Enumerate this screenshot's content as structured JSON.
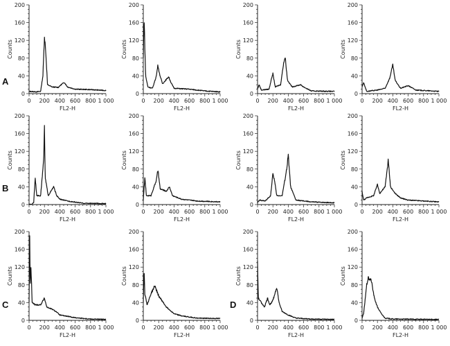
{
  "chart_data": {
    "type": "line",
    "xlabel": "FL2-H",
    "ylabel": "Counts",
    "xlim": [
      0,
      1000
    ],
    "ylim": [
      0,
      200
    ],
    "xticks": [
      "0",
      "200",
      "400",
      "600",
      "800",
      "1 000"
    ],
    "yticks": [
      "0",
      "40",
      "80",
      "120",
      "160",
      "200"
    ],
    "grid": false,
    "panel_labels": [
      "A",
      "B",
      "C",
      "D"
    ],
    "panels": [
      {
        "group": "A",
        "points": [
          [
            0,
            5
          ],
          [
            100,
            4
          ],
          [
            150,
            5
          ],
          [
            180,
            40
          ],
          [
            200,
            130
          ],
          [
            215,
            100
          ],
          [
            240,
            20
          ],
          [
            300,
            15
          ],
          [
            380,
            14
          ],
          [
            430,
            22
          ],
          [
            460,
            25
          ],
          [
            500,
            15
          ],
          [
            600,
            10
          ],
          [
            800,
            9
          ],
          [
            1000,
            7
          ]
        ]
      },
      {
        "group": "A",
        "points": [
          [
            0,
            80
          ],
          [
            10,
            175
          ],
          [
            20,
            105
          ],
          [
            30,
            40
          ],
          [
            60,
            15
          ],
          [
            120,
            12
          ],
          [
            170,
            40
          ],
          [
            190,
            65
          ],
          [
            210,
            45
          ],
          [
            250,
            22
          ],
          [
            300,
            32
          ],
          [
            330,
            38
          ],
          [
            360,
            25
          ],
          [
            400,
            12
          ],
          [
            600,
            10
          ],
          [
            800,
            6
          ],
          [
            1000,
            4
          ]
        ]
      },
      {
        "group": "A",
        "points": [
          [
            0,
            10
          ],
          [
            20,
            20
          ],
          [
            50,
            8
          ],
          [
            150,
            10
          ],
          [
            190,
            40
          ],
          [
            200,
            45
          ],
          [
            230,
            15
          ],
          [
            300,
            20
          ],
          [
            340,
            70
          ],
          [
            360,
            82
          ],
          [
            390,
            30
          ],
          [
            450,
            15
          ],
          [
            560,
            20
          ],
          [
            600,
            15
          ],
          [
            700,
            6
          ],
          [
            1000,
            5
          ]
        ]
      },
      {
        "group": "A",
        "points": [
          [
            0,
            15
          ],
          [
            20,
            25
          ],
          [
            60,
            5
          ],
          [
            200,
            8
          ],
          [
            300,
            12
          ],
          [
            360,
            35
          ],
          [
            400,
            65
          ],
          [
            430,
            30
          ],
          [
            500,
            12
          ],
          [
            600,
            18
          ],
          [
            700,
            8
          ],
          [
            1000,
            5
          ]
        ]
      },
      {
        "group": "B",
        "points": [
          [
            0,
            0
          ],
          [
            40,
            1
          ],
          [
            60,
            5
          ],
          [
            80,
            60
          ],
          [
            100,
            20
          ],
          [
            150,
            20
          ],
          [
            190,
            100
          ],
          [
            200,
            175
          ],
          [
            210,
            60
          ],
          [
            250,
            20
          ],
          [
            320,
            40
          ],
          [
            360,
            20
          ],
          [
            400,
            12
          ],
          [
            500,
            8
          ],
          [
            700,
            3
          ],
          [
            1000,
            2
          ]
        ]
      },
      {
        "group": "B",
        "points": [
          [
            0,
            10
          ],
          [
            20,
            60
          ],
          [
            40,
            20
          ],
          [
            100,
            20
          ],
          [
            170,
            55
          ],
          [
            190,
            78
          ],
          [
            220,
            35
          ],
          [
            300,
            30
          ],
          [
            340,
            40
          ],
          [
            380,
            20
          ],
          [
            500,
            12
          ],
          [
            700,
            8
          ],
          [
            1000,
            6
          ]
        ]
      },
      {
        "group": "B",
        "points": [
          [
            0,
            5
          ],
          [
            30,
            10
          ],
          [
            100,
            8
          ],
          [
            170,
            20
          ],
          [
            200,
            70
          ],
          [
            220,
            55
          ],
          [
            250,
            20
          ],
          [
            320,
            20
          ],
          [
            380,
            80
          ],
          [
            400,
            112
          ],
          [
            430,
            40
          ],
          [
            500,
            10
          ],
          [
            700,
            6
          ],
          [
            1000,
            4
          ]
        ]
      },
      {
        "group": "B",
        "points": [
          [
            0,
            30
          ],
          [
            20,
            10
          ],
          [
            60,
            15
          ],
          [
            150,
            20
          ],
          [
            200,
            45
          ],
          [
            230,
            25
          ],
          [
            300,
            40
          ],
          [
            340,
            100
          ],
          [
            370,
            40
          ],
          [
            430,
            25
          ],
          [
            500,
            15
          ],
          [
            600,
            10
          ],
          [
            800,
            8
          ],
          [
            1000,
            6
          ]
        ]
      },
      {
        "group": "C",
        "points": [
          [
            0,
            40
          ],
          [
            8,
            195
          ],
          [
            15,
            80
          ],
          [
            25,
            120
          ],
          [
            40,
            40
          ],
          [
            80,
            35
          ],
          [
            150,
            35
          ],
          [
            200,
            50
          ],
          [
            230,
            30
          ],
          [
            300,
            25
          ],
          [
            350,
            20
          ],
          [
            400,
            12
          ],
          [
            600,
            6
          ],
          [
            800,
            3
          ],
          [
            1000,
            2
          ]
        ]
      },
      {
        "group": "C",
        "points": [
          [
            0,
            40
          ],
          [
            10,
            120
          ],
          [
            20,
            60
          ],
          [
            50,
            35
          ],
          [
            100,
            60
          ],
          [
            150,
            78
          ],
          [
            200,
            55
          ],
          [
            300,
            30
          ],
          [
            400,
            15
          ],
          [
            500,
            10
          ],
          [
            700,
            5
          ],
          [
            1000,
            4
          ]
        ]
      },
      {
        "group": "D",
        "points": [
          [
            0,
            135
          ],
          [
            10,
            50
          ],
          [
            50,
            40
          ],
          [
            90,
            30
          ],
          [
            130,
            50
          ],
          [
            160,
            35
          ],
          [
            200,
            45
          ],
          [
            250,
            75
          ],
          [
            280,
            40
          ],
          [
            320,
            20
          ],
          [
            400,
            12
          ],
          [
            500,
            5
          ],
          [
            700,
            3
          ],
          [
            1000,
            2
          ]
        ]
      },
      {
        "group": "D",
        "points": [
          [
            0,
            5
          ],
          [
            20,
            15
          ],
          [
            60,
            80
          ],
          [
            80,
            95
          ],
          [
            120,
            90
          ],
          [
            160,
            50
          ],
          [
            200,
            30
          ],
          [
            250,
            15
          ],
          [
            300,
            5
          ],
          [
            400,
            3
          ],
          [
            1000,
            2
          ]
        ]
      }
    ]
  }
}
